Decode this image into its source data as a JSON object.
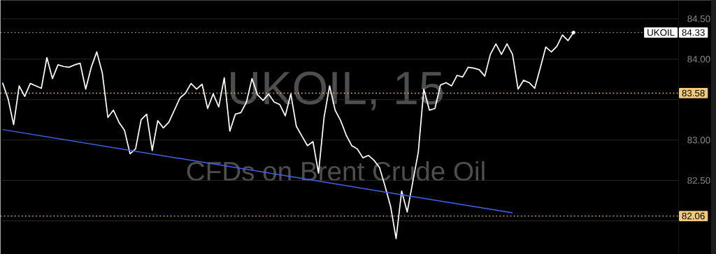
{
  "chart_data": {
    "type": "line",
    "title": "UKOIL, 15",
    "subtitle": "CFDs on Brent Crude Oil",
    "categories": [
      null,
      null,
      null,
      null,
      null,
      null,
      null,
      null,
      null,
      null,
      null,
      null,
      null,
      null,
      null,
      null,
      null,
      null,
      null,
      null,
      null,
      null,
      null,
      null,
      null,
      null,
      null,
      null,
      null,
      null,
      null,
      null,
      null,
      null,
      null,
      null,
      null,
      null,
      null,
      null,
      null,
      null,
      null,
      null,
      null,
      null,
      null,
      null,
      null,
      null,
      null,
      null,
      null,
      null,
      null,
      null,
      null,
      null,
      null,
      null,
      null,
      null,
      null,
      null,
      null,
      null,
      null,
      null,
      null,
      null,
      null,
      null,
      null,
      null,
      null,
      null,
      null,
      null,
      null,
      null,
      null,
      null,
      null,
      null,
      null,
      null,
      null,
      null,
      null,
      null,
      null,
      null,
      null,
      null,
      null,
      null,
      null,
      null,
      null,
      null,
      null,
      null,
      null,
      null
    ],
    "series": [
      {
        "color": "#ffffff",
        "values": [
          83.71,
          83.51,
          83.19,
          83.67,
          83.54,
          83.7,
          83.67,
          83.64,
          84.02,
          83.76,
          83.93,
          83.91,
          83.9,
          83.93,
          83.95,
          83.63,
          83.9,
          84.09,
          83.83,
          83.28,
          83.37,
          83.22,
          83.12,
          82.83,
          82.89,
          83.25,
          83.32,
          82.87,
          83.24,
          83.15,
          83.22,
          83.37,
          83.52,
          83.58,
          83.7,
          83.63,
          83.69,
          83.39,
          83.57,
          83.41,
          83.77,
          83.11,
          83.32,
          83.34,
          83.47,
          83.76,
          83.56,
          83.49,
          83.57,
          83.47,
          83.44,
          83.3,
          83.57,
          83.17,
          83.05,
          82.93,
          82.98,
          82.59,
          83.28,
          83.67,
          83.37,
          83.24,
          83.06,
          82.93,
          82.89,
          82.78,
          82.81,
          82.75,
          82.66,
          82.43,
          82.18,
          81.78,
          82.37,
          82.11,
          82.48,
          82.85,
          83.63,
          83.37,
          83.39,
          83.68,
          83.71,
          83.67,
          83.8,
          83.78,
          83.9,
          83.89,
          83.87,
          83.79,
          84.06,
          84.19,
          84.06,
          84.19,
          84.06,
          83.63,
          83.74,
          83.71,
          83.64,
          83.89,
          84.15,
          84.09,
          84.16,
          84.3,
          84.23,
          84.33
        ]
      },
      {
        "type": "line",
        "color": "#3f63f2",
        "values": [
          83.13,
          null,
          null,
          null,
          null,
          null,
          null,
          null,
          null,
          null,
          null,
          null,
          null,
          null,
          null,
          null,
          null,
          null,
          null,
          null,
          null,
          null,
          null,
          null,
          null,
          null,
          null,
          null,
          null,
          null,
          null,
          null,
          null,
          null,
          null,
          null,
          null,
          null,
          null,
          null,
          null,
          null,
          null,
          null,
          null,
          null,
          null,
          null,
          null,
          null,
          null,
          null,
          null,
          null,
          null,
          null,
          null,
          null,
          null,
          null,
          null,
          null,
          null,
          null,
          null,
          null,
          null,
          null,
          null,
          null,
          null,
          null,
          null,
          null,
          null,
          null,
          null,
          null,
          null,
          null,
          null,
          null,
          null,
          null,
          null,
          null,
          null,
          null,
          null,
          null,
          null,
          null,
          82.1,
          null,
          null,
          null,
          null,
          null,
          null,
          null,
          null,
          null,
          null,
          null
        ]
      }
    ],
    "ylim": [
      81.59,
      84.73
    ],
    "yticks": [
      {
        "value": 82.0,
        "label": null
      },
      {
        "value": 82.5,
        "label": "82.50"
      },
      {
        "value": 83.0,
        "label": "83.00"
      },
      {
        "value": 83.5,
        "label": null
      },
      {
        "value": 84.0,
        "label": "84.00"
      },
      {
        "value": 84.5,
        "label": "84.50"
      }
    ],
    "ref_lines": [
      {
        "axis": "y",
        "value": 84.33,
        "label": "84.33",
        "color": "#9a9a9a",
        "line_style": "dotted"
      },
      {
        "axis": "y",
        "value": 83.58,
        "label": "83.58",
        "color": "#f5c87a",
        "line_style": "dotted"
      },
      {
        "axis": "y",
        "value": 82.06,
        "label": "82.06",
        "color": "#f5c87a",
        "line_style": "dotted"
      }
    ],
    "annotations": [
      {
        "text": "UKOIL",
        "y": 84.33
      }
    ],
    "grid": "y",
    "tick_labels": "y"
  }
}
